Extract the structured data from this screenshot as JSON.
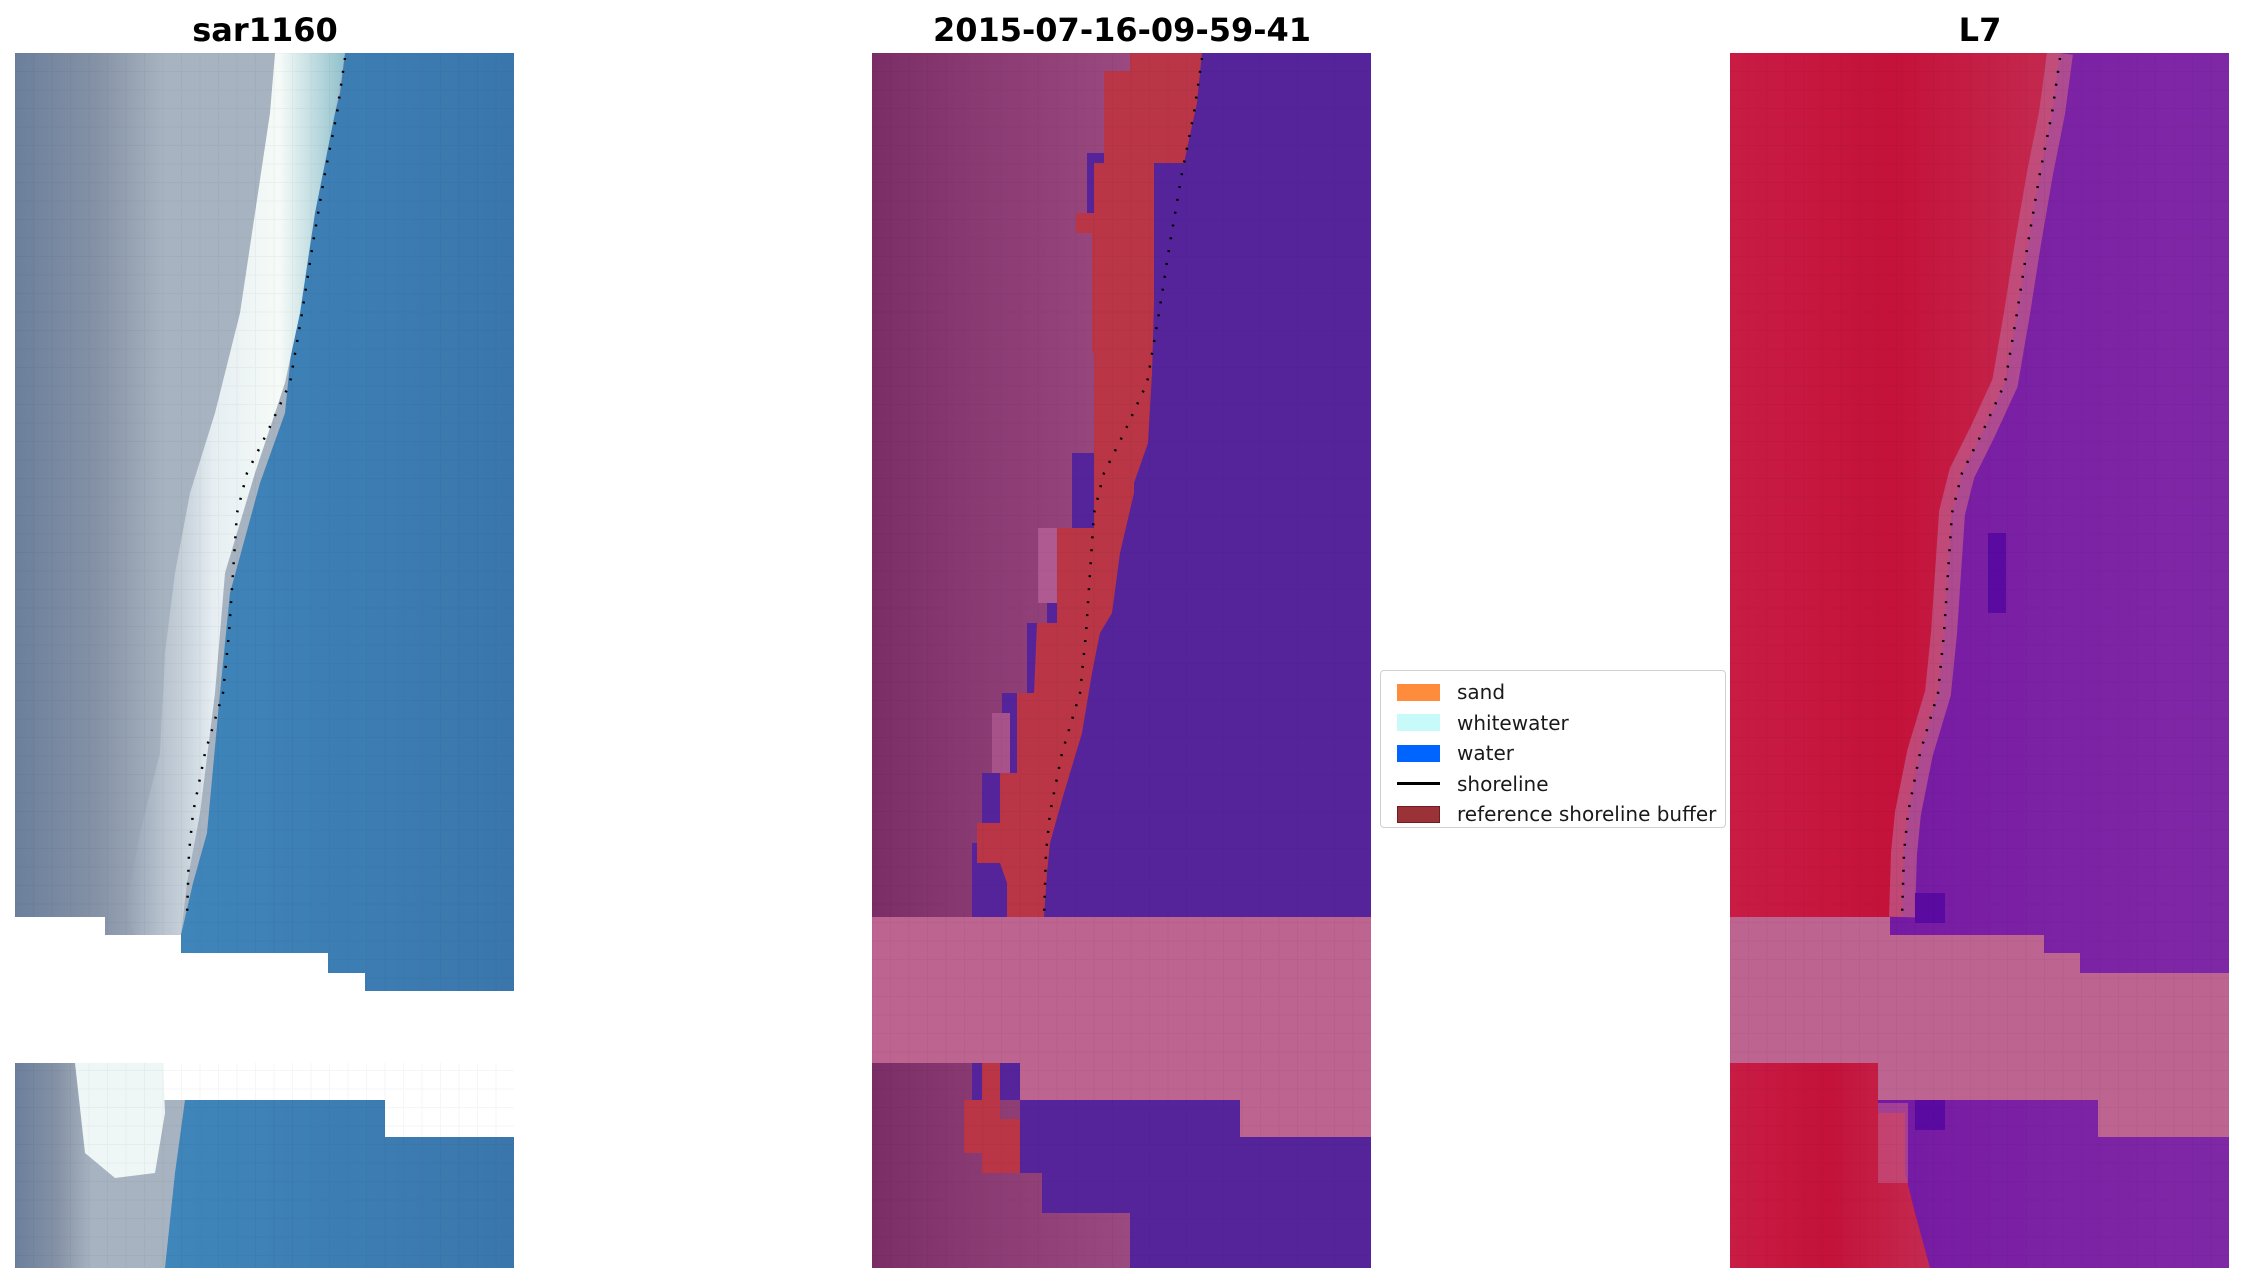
{
  "figure": {
    "panels": [
      {
        "title": "sar1160",
        "kind": "rgb"
      },
      {
        "title": "2015-07-16-09-59-41",
        "kind": "classified"
      },
      {
        "title": "L7",
        "kind": "index"
      }
    ]
  },
  "legend": {
    "items": [
      {
        "label": "sand",
        "type": "patch",
        "color": "#ff8c3c"
      },
      {
        "label": "whitewater",
        "type": "patch",
        "color": "#c8fafa"
      },
      {
        "label": "water",
        "type": "patch",
        "color": "#0064ff"
      },
      {
        "label": "shoreline",
        "type": "line",
        "color": "#000000"
      },
      {
        "label": "reference shoreline buffer",
        "type": "patch",
        "color": "#9b3237",
        "edge": "#6e1e22"
      }
    ]
  },
  "colors": {
    "cloud_mask": "#bd6491",
    "water_class": "#55249a",
    "buffer": "#ba3646",
    "index_land": "#c81c44",
    "index_water": "#7a1aa0"
  }
}
